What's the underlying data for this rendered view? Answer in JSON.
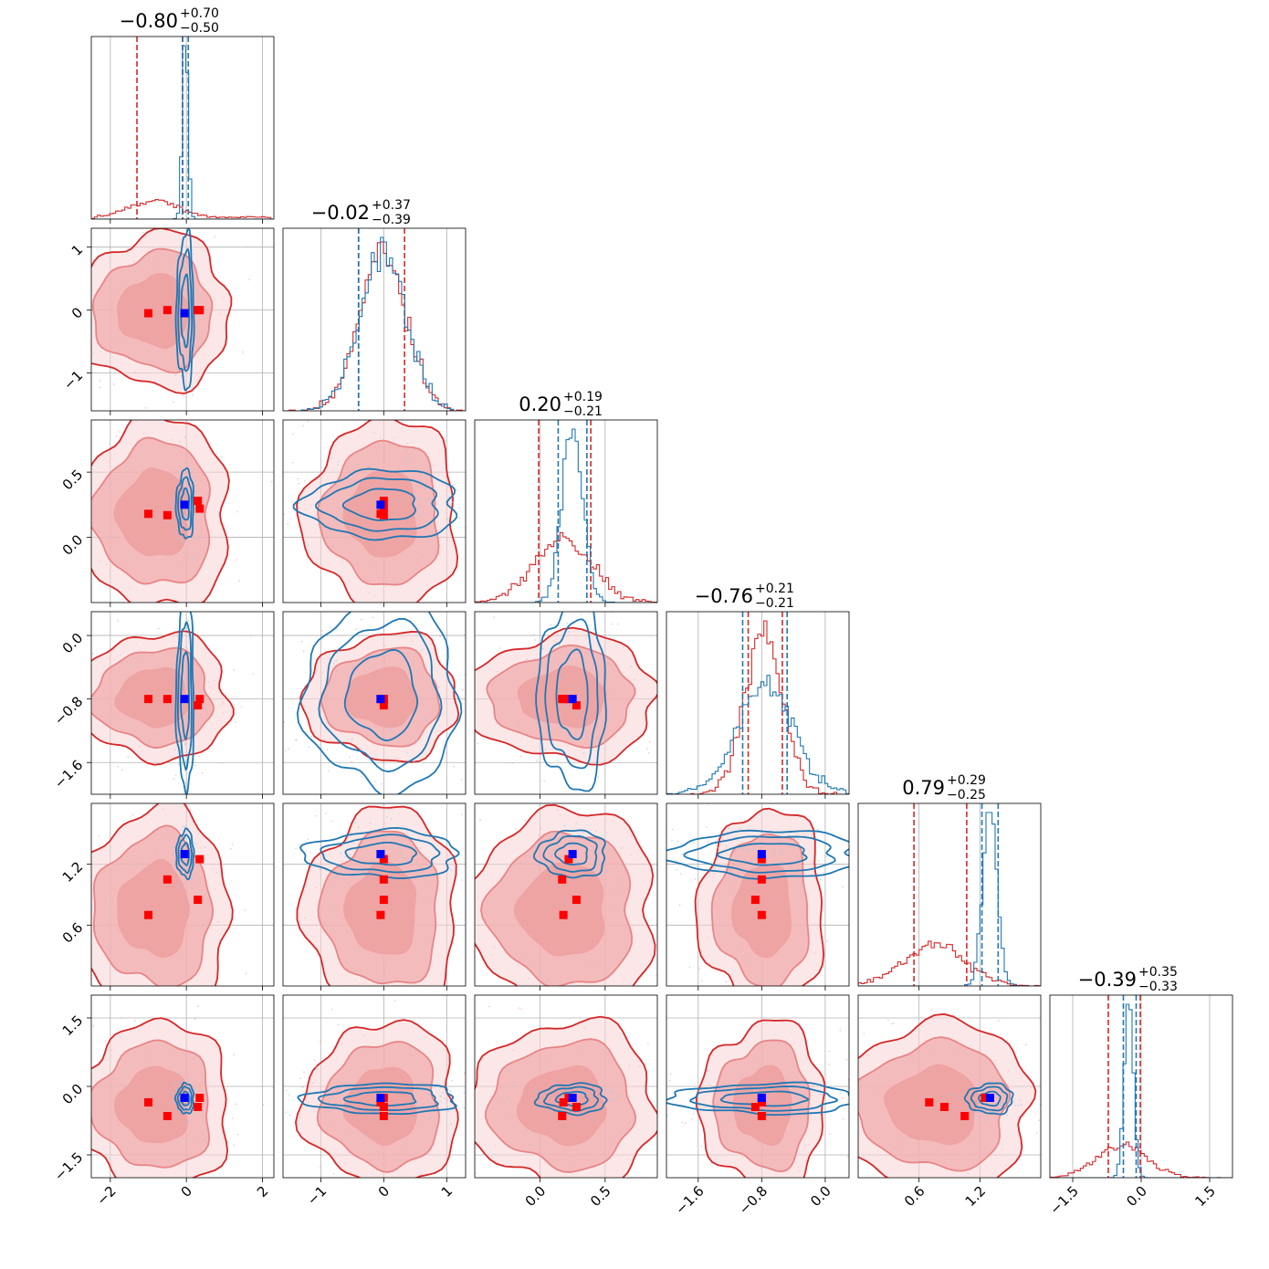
{
  "chart_data": {
    "type": "corner",
    "parameters": 6,
    "colors": {
      "primary": "#d62728",
      "secondary": "#1f77b4",
      "marker_primary": "#ff0000",
      "marker_secondary": "#0000ff",
      "grid": "#b0b0b0"
    },
    "titles": [
      {
        "median": "−0.80",
        "plus": "+0.70",
        "minus": "−0.50"
      },
      {
        "median": "−0.02",
        "plus": "+0.37",
        "minus": "−0.39"
      },
      {
        "median": "0.20",
        "plus": "+0.19",
        "minus": "−0.21"
      },
      {
        "median": "−0.76",
        "plus": "+0.21",
        "minus": "−0.21"
      },
      {
        "median": "0.79",
        "plus": "+0.29",
        "minus": "−0.25"
      },
      {
        "median": "−0.39",
        "plus": "+0.35",
        "minus": "−0.33"
      }
    ],
    "axes": [
      {
        "range": [
          -2.5,
          2.3
        ],
        "ticks": [
          -2,
          0,
          2
        ],
        "tick_labels": [
          "−2",
          "0",
          "2"
        ]
      },
      {
        "range": [
          -1.6,
          1.3
        ],
        "ticks": [
          -1,
          0,
          1
        ],
        "tick_labels": [
          "−1",
          "0",
          "1"
        ]
      },
      {
        "range": [
          -0.5,
          0.9
        ],
        "ticks": [
          0.0,
          0.5
        ],
        "tick_labels": [
          "0.0",
          "0.5"
        ]
      },
      {
        "range": [
          -2.0,
          0.3
        ],
        "ticks": [
          -1.6,
          -0.8,
          0.0
        ],
        "tick_labels": [
          "−1.6",
          "−0.8",
          "0.0"
        ]
      },
      {
        "range": [
          0.0,
          1.8
        ],
        "ticks": [
          0.6,
          1.2
        ],
        "tick_labels": [
          "0.6",
          "1.2"
        ]
      },
      {
        "range": [
          -2.0,
          2.0
        ],
        "ticks": [
          -1.5,
          0.0,
          1.5
        ],
        "tick_labels": [
          "−1.5",
          "0.0",
          "1.5"
        ]
      }
    ],
    "series": [
      {
        "color": "#d62728",
        "means": [
          -0.85,
          -0.02,
          0.18,
          -0.78,
          0.75,
          -0.42
        ],
        "sigmas": [
          0.62,
          0.37,
          0.22,
          0.24,
          0.3,
          0.55
        ],
        "quantile_lines": [
          [
            -1.3,
            -0.1
          ],
          [
            -0.4,
            0.33
          ],
          [
            -0.01,
            0.39
          ],
          [
            -0.97,
            -0.54
          ],
          [
            0.55,
            1.07
          ],
          [
            -0.72,
            -0.02
          ]
        ]
      },
      {
        "color": "#1f77b4",
        "means": [
          -0.03,
          -0.02,
          0.25,
          -0.75,
          1.3,
          -0.27
        ],
        "sigmas": [
          0.07,
          0.37,
          0.08,
          0.36,
          0.07,
          0.1
        ],
        "quantile_lines": [
          [
            -0.1,
            0.05
          ],
          [
            -0.4,
            -0.4
          ],
          [
            0.14,
            0.36
          ],
          [
            -1.04,
            -0.48
          ],
          [
            1.22,
            1.38
          ],
          [
            -0.39,
            -0.11
          ]
        ]
      }
    ],
    "primary_markers": [
      [
        -1.0,
        -0.05,
        0.18,
        -0.8,
        0.7,
        -0.35
      ],
      [
        -0.5,
        0.0,
        0.17,
        -0.8,
        1.05,
        -0.65
      ],
      [
        0.3,
        0.0,
        0.28,
        -0.88,
        0.85,
        -0.45
      ],
      [
        0.35,
        0.0,
        0.22,
        -0.8,
        1.25,
        -0.25
      ]
    ],
    "secondary_marker": [
      -0.05,
      -0.05,
      0.25,
      -0.8,
      1.3,
      -0.25
    ]
  }
}
